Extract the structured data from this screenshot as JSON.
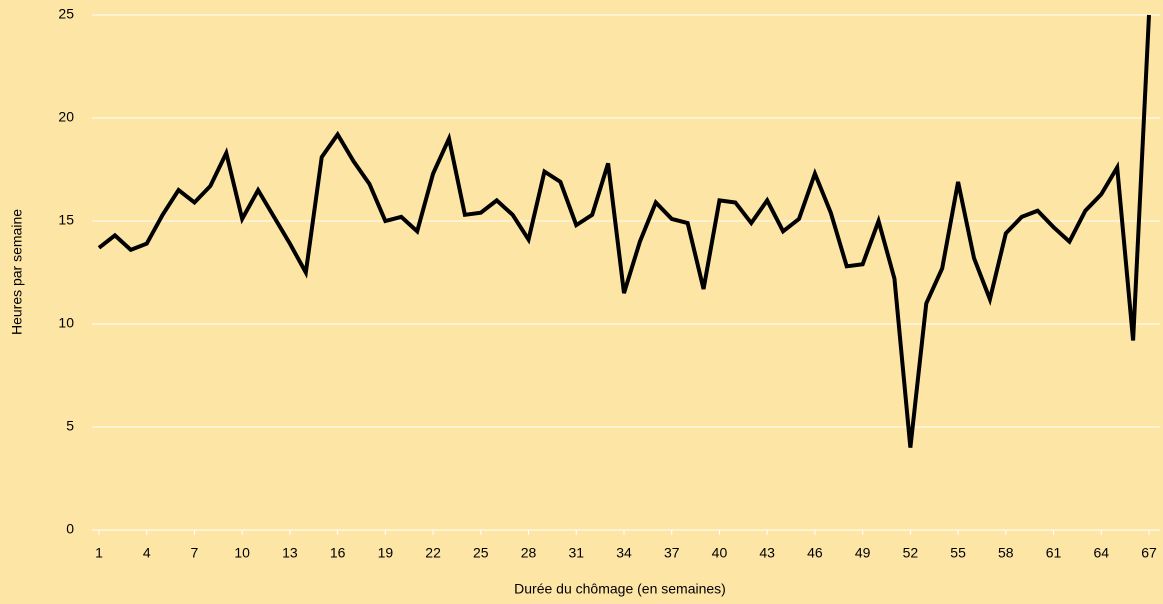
{
  "chart_data": {
    "type": "line",
    "x_label": "Durée du chômage (en semaines)",
    "y_label": "Heures par semaine",
    "x": [
      1,
      2,
      3,
      4,
      5,
      6,
      7,
      8,
      9,
      10,
      11,
      12,
      13,
      14,
      15,
      16,
      17,
      18,
      19,
      20,
      21,
      22,
      23,
      24,
      25,
      26,
      27,
      28,
      29,
      30,
      31,
      32,
      33,
      34,
      35,
      36,
      37,
      38,
      39,
      40,
      41,
      42,
      43,
      44,
      45,
      46,
      47,
      48,
      49,
      50,
      51,
      52,
      53,
      54,
      55,
      56,
      57,
      58,
      59,
      60,
      61,
      62,
      63,
      64,
      65,
      66,
      67
    ],
    "series": [
      {
        "color": "#000000",
        "values": [
          13.7,
          14.3,
          13.6,
          13.9,
          15.3,
          16.5,
          15.9,
          16.7,
          18.3,
          15.1,
          16.5,
          15.2,
          13.9,
          12.5,
          18.1,
          19.2,
          17.9,
          16.8,
          15.0,
          15.2,
          14.5,
          17.3,
          19.0,
          15.3,
          15.4,
          16.0,
          15.3,
          14.1,
          17.4,
          16.9,
          14.8,
          15.3,
          17.8,
          11.5,
          14.0,
          15.9,
          15.1,
          14.9,
          11.7,
          16.0,
          15.9,
          14.9,
          16.0,
          14.5,
          15.1,
          17.3,
          15.4,
          12.8,
          12.9,
          15.0,
          12.2,
          4.0,
          11.0,
          12.7,
          16.9,
          13.2,
          11.2,
          14.4,
          15.2,
          15.5,
          14.7,
          14.0,
          15.5,
          16.3,
          17.6,
          9.2,
          25.0
        ]
      }
    ],
    "xlim": [
      1,
      67
    ],
    "xticks": [
      1,
      4,
      7,
      10,
      13,
      16,
      19,
      22,
      25,
      28,
      31,
      34,
      37,
      40,
      43,
      46,
      49,
      52,
      55,
      58,
      61,
      64,
      67
    ],
    "ylim": [
      0,
      25
    ],
    "yticks": [
      0,
      5,
      10,
      15,
      20,
      25
    ],
    "grid": true,
    "background": "#fde5a6"
  }
}
